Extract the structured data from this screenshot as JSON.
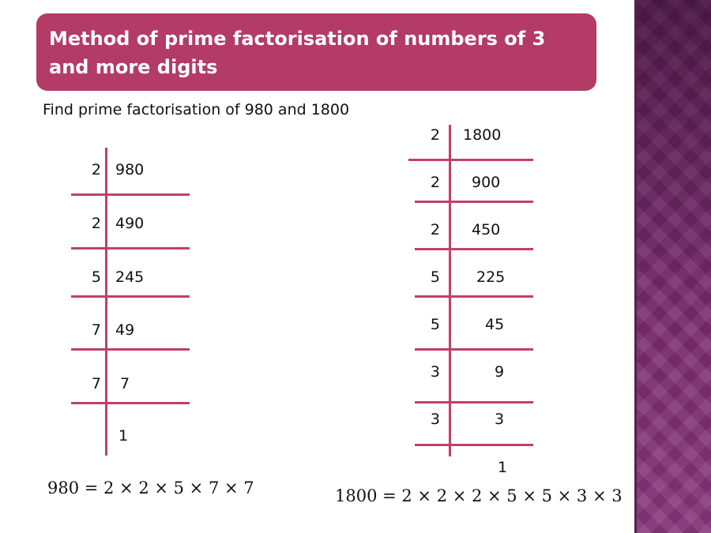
{
  "slide": {
    "title": "Method of prime factorisation of numbers of 3 and more digits",
    "instruction": "Find prime factorisation of 980 and 1800"
  },
  "ladder_980": {
    "divisors": [
      "2",
      "2",
      "5",
      "7",
      "7"
    ],
    "quotients": [
      "980",
      "490",
      "245",
      "49",
      "7",
      "1"
    ],
    "equation": "980 = 2 × 2 × 5 × 7 × 7"
  },
  "ladder_1800": {
    "divisors": [
      "2",
      "2",
      "2",
      "5",
      "5",
      "3",
      "3"
    ],
    "quotients": [
      "1800",
      "900",
      "450",
      "225",
      "45",
      "9",
      "3",
      "1"
    ],
    "equation": "1800 = 2 × 2 × 2 × 5 × 5 × 3 × 3"
  },
  "colors": {
    "accent": "#b33b66",
    "rule": "#c0406a",
    "side_panel": "#7a2c6e"
  }
}
